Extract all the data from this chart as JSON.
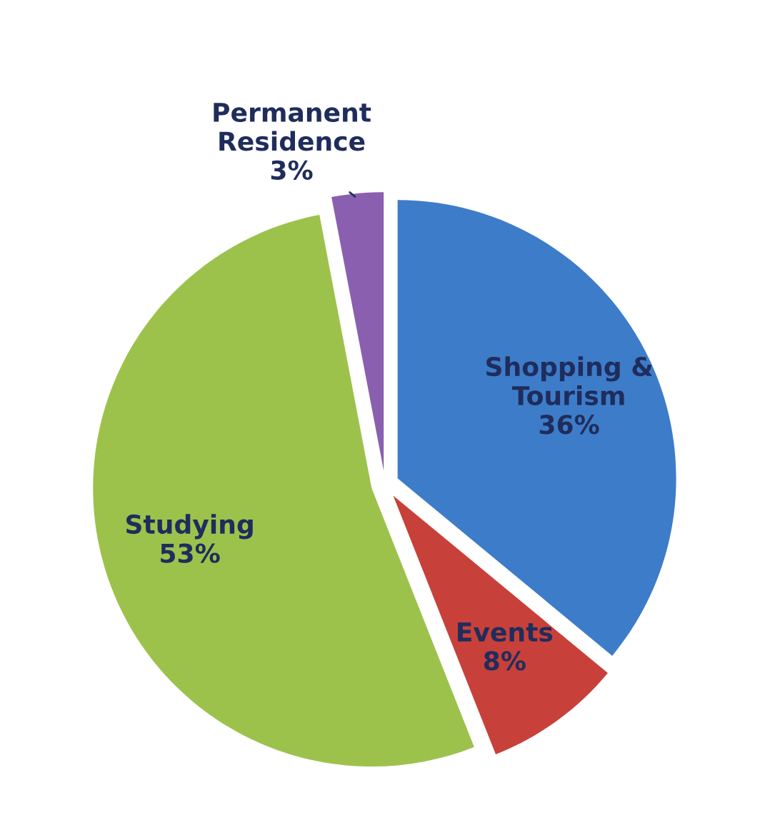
{
  "chart_data": {
    "type": "pie",
    "categories": [
      "Shopping & Tourism",
      "Events",
      "Studying",
      "Permanent Residence"
    ],
    "values": [
      36,
      8,
      53,
      3
    ],
    "colors": [
      "#3d7cc9",
      "#c8403a",
      "#9cc24c",
      "#8a5fb0"
    ],
    "value_labels": [
      "36%",
      "8%",
      "53%",
      "3%"
    ],
    "legend": false
  }
}
